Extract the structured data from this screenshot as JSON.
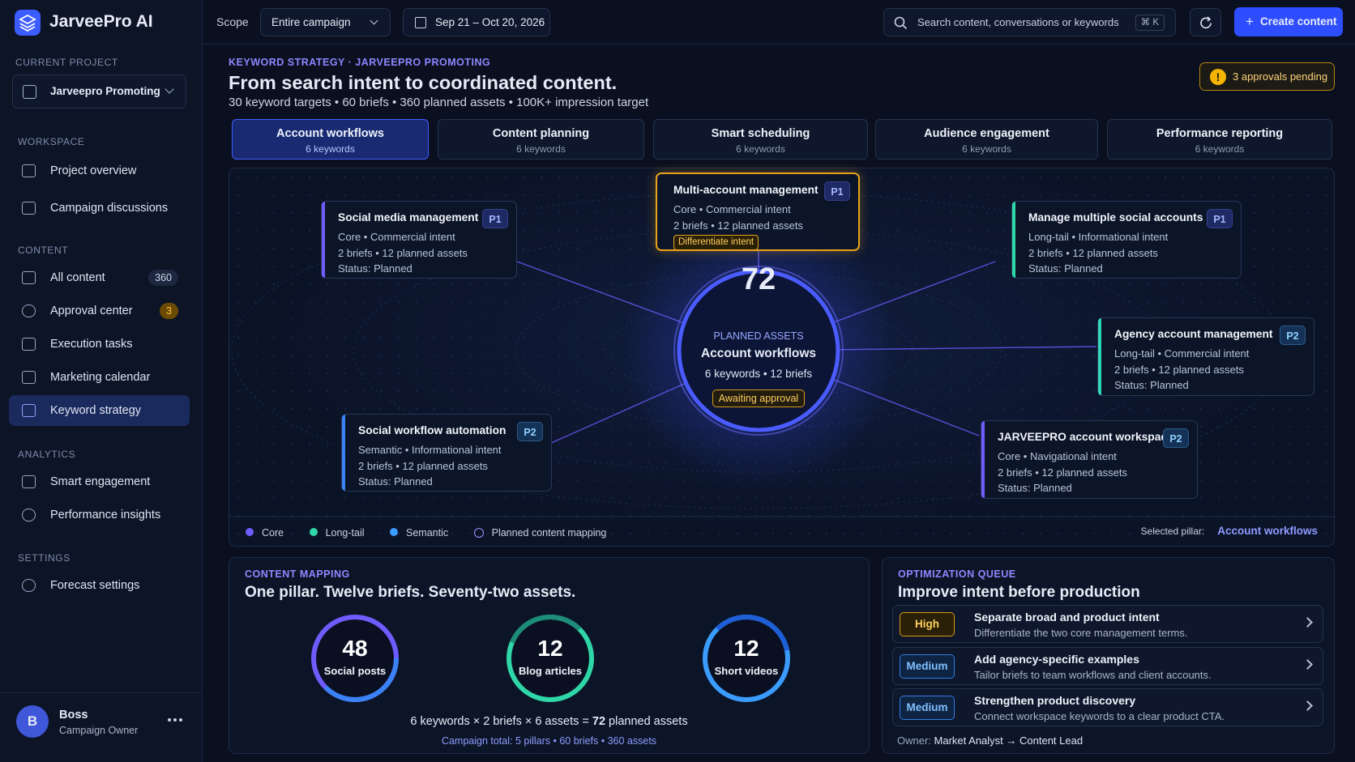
{
  "brand": "JarveePro AI",
  "sidebar": {
    "current_project_label": "CURRENT PROJECT",
    "project": "Jarveepro Promoting",
    "workspace": {
      "title": "WORKSPACE",
      "items": [
        "Project overview",
        "Campaign discussions"
      ]
    },
    "content": {
      "title": "CONTENT",
      "items": [
        {
          "label": "All content",
          "badge": 360
        },
        {
          "label": "Approval center",
          "badge": 3
        },
        {
          "label": "Execution tasks"
        },
        {
          "label": "Marketing calendar"
        },
        {
          "label": "Keyword strategy"
        }
      ]
    },
    "analytics": {
      "title": "ANALYTICS",
      "items": [
        "Smart engagement",
        "Performance insights"
      ]
    },
    "settings": {
      "title": "SETTINGS",
      "items": [
        "Forecast settings"
      ]
    },
    "user": {
      "initial": "B",
      "name": "Boss",
      "role": "Campaign Owner"
    }
  },
  "topbar": {
    "scope_label": "Scope",
    "scope": "Entire campaign",
    "dates": "Sep 21 – Oct 20, 2026",
    "search": "Search content, conversations or keywords",
    "shortcut": "⌘ K",
    "create": "Create content"
  },
  "header": {
    "eyebrow": "KEYWORD STRATEGY · JARVEEPRO PROMOTING",
    "title": "From search intent to coordinated content.",
    "subtitle": "30 keyword targets • 60 briefs • 360 planned assets • 100K+ impression target",
    "approvals": "3 approvals pending"
  },
  "tabs": [
    {
      "title": "Account workflows",
      "sub": "6 keywords"
    },
    {
      "title": "Content planning",
      "sub": "6 keywords"
    },
    {
      "title": "Smart scheduling",
      "sub": "6 keywords"
    },
    {
      "title": "Audience engagement",
      "sub": "6 keywords"
    },
    {
      "title": "Performance reporting",
      "sub": "6 keywords"
    }
  ],
  "map": {
    "center": {
      "value": 72,
      "label": "PLANNED ASSETS",
      "title": "Account workflows",
      "meta": "6 keywords • 12 briefs",
      "status": "Awaiting approval"
    },
    "nodes": [
      {
        "title": "Social media management",
        "priority": "P1",
        "meta": "Core • Commercial intent",
        "assets": "2 briefs • 12 planned assets",
        "status": "Status: Planned"
      },
      {
        "title": "Multi-account management",
        "priority": "P1",
        "meta": "Core • Commercial intent",
        "assets": "2 briefs • 12 planned assets",
        "tag": "Differentiate intent"
      },
      {
        "title": "Manage multiple social accounts",
        "priority": "P1",
        "meta": "Long-tail • Informational intent",
        "assets": "2 briefs • 12 planned assets",
        "status": "Status: Planned"
      },
      {
        "title": "Agency account management",
        "priority": "P2",
        "meta": "Long-tail • Commercial intent",
        "assets": "2 briefs • 12 planned assets",
        "status": "Status: Planned"
      },
      {
        "title": "JARVEEPRO account workspace",
        "priority": "P2",
        "meta": "Core • Navigational intent",
        "assets": "2 briefs • 12 planned assets",
        "status": "Status: Planned"
      },
      {
        "title": "Social workflow automation",
        "priority": "P2",
        "meta": "Semantic • Informational intent",
        "assets": "2 briefs • 12 planned assets",
        "status": "Status: Planned"
      }
    ],
    "legend": [
      "Core",
      "Long-tail",
      "Semantic",
      "Planned content mapping"
    ],
    "selected_label": "Selected pillar:",
    "selected": "Account workflows"
  },
  "mapping": {
    "eyebrow": "CONTENT MAPPING",
    "title": "One pillar. Twelve briefs. Seventy-two assets.",
    "rings": [
      {
        "value": 48,
        "label": "Social posts"
      },
      {
        "value": 12,
        "label": "Blog articles"
      },
      {
        "value": 12,
        "label": "Short videos"
      }
    ],
    "formula": {
      "lead": "6 keywords × 2 briefs × 6 assets = ",
      "total": 72,
      "tail": " planned assets"
    },
    "campaign_total": "Campaign total: 5 pillars • 60 briefs • 360 assets"
  },
  "queue": {
    "eyebrow": "OPTIMIZATION QUEUE",
    "title": "Improve intent before production",
    "items": [
      {
        "priority": "High",
        "title": "Separate broad and product intent",
        "desc": "Differentiate the two core management terms."
      },
      {
        "priority": "Medium",
        "title": "Add agency-specific examples",
        "desc": "Tailor briefs to team workflows and client accounts."
      },
      {
        "priority": "Medium",
        "title": "Strengthen product discovery",
        "desc": "Connect workspace keywords to a clear product CTA."
      }
    ],
    "owner_label": "Owner:",
    "owner": "Market Analyst → Content Lead"
  }
}
